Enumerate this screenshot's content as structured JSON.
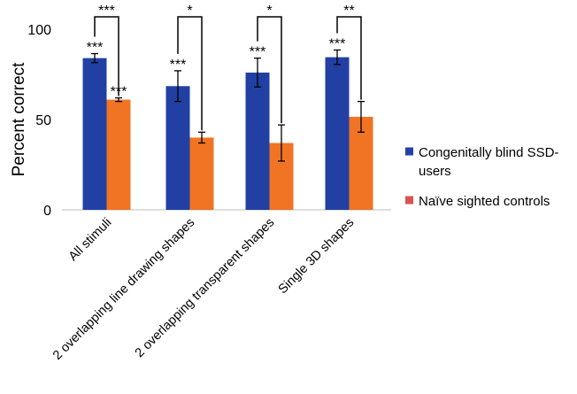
{
  "chart_data": {
    "type": "bar",
    "title": "",
    "xlabel": "",
    "ylabel": "Percent correct",
    "ylim": [
      0,
      100
    ],
    "yticks": [
      0,
      50,
      100
    ],
    "grid": false,
    "legend_position": "right",
    "categories": [
      "All stimuli",
      "2 overlapping line drawing shapes",
      "2 overlapping transparent shapes",
      "Single 3D shapes"
    ],
    "series": [
      {
        "name": "Congenitally blind SSD-users",
        "color": "#2240a4",
        "values": [
          84,
          68.5,
          76,
          84.5
        ],
        "error": [
          2.5,
          8.5,
          8,
          4
        ],
        "significance": [
          "***",
          "***",
          "***",
          "***"
        ]
      },
      {
        "name": "Naïve sighted controls",
        "color": "#f07423",
        "legend_color": "#d9534f",
        "values": [
          61,
          40,
          37,
          51.5
        ],
        "error": [
          1,
          3,
          10,
          8.5
        ],
        "significance": [
          "***",
          "",
          "",
          ""
        ]
      }
    ],
    "group_significance": [
      "***",
      "*",
      "*",
      "**"
    ]
  }
}
